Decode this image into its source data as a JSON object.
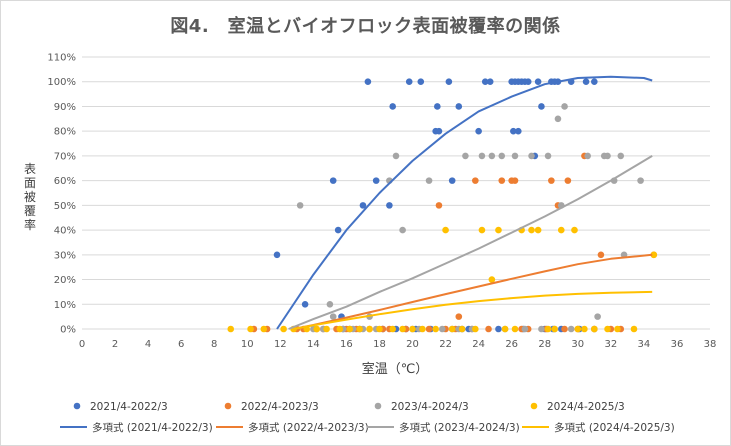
{
  "colors": {
    "s1": "#4472C4",
    "s2": "#ED7D31",
    "s3": "#A5A5A5",
    "s4": "#FFC000"
  },
  "chart_data": {
    "type": "scatter",
    "title": "図4.　室温とバイオフロック表面被覆率の関係",
    "xlabel": "室温（℃）",
    "ylabel": "表面被覆率",
    "xlim": [
      0,
      38
    ],
    "ylim": [
      0,
      110
    ],
    "x_ticks": [
      "0",
      "2",
      "4",
      "6",
      "8",
      "10",
      "12",
      "14",
      "16",
      "18",
      "20",
      "22",
      "24",
      "26",
      "28",
      "30",
      "32",
      "34",
      "36",
      "38"
    ],
    "y_ticks": [
      "0%",
      "10%",
      "20%",
      "30%",
      "40%",
      "50%",
      "60%",
      "70%",
      "80%",
      "90%",
      "100%",
      "110%"
    ],
    "grid": true,
    "legend_position": "bottom",
    "series": [
      {
        "name": "2021/4-2022/3",
        "color": "#4472C4",
        "points": [
          [
            11.8,
            30
          ],
          [
            13.5,
            10
          ],
          [
            15.2,
            60
          ],
          [
            15.5,
            40
          ],
          [
            15.7,
            5
          ],
          [
            15.8,
            0
          ],
          [
            16.2,
            0
          ],
          [
            16.8,
            0
          ],
          [
            17.0,
            50
          ],
          [
            17.3,
            100
          ],
          [
            17.8,
            60
          ],
          [
            18.2,
            0
          ],
          [
            18.6,
            50
          ],
          [
            18.8,
            90
          ],
          [
            19.0,
            0
          ],
          [
            19.6,
            0
          ],
          [
            19.8,
            100
          ],
          [
            20.2,
            0
          ],
          [
            20.5,
            100
          ],
          [
            21.1,
            0
          ],
          [
            21.4,
            80
          ],
          [
            21.5,
            90
          ],
          [
            21.6,
            80
          ],
          [
            22.2,
            100
          ],
          [
            22.4,
            60
          ],
          [
            22.8,
            90
          ],
          [
            23.0,
            0
          ],
          [
            23.4,
            0
          ],
          [
            24.0,
            80
          ],
          [
            24.4,
            100
          ],
          [
            24.7,
            100
          ],
          [
            25.2,
            0
          ],
          [
            26.0,
            100
          ],
          [
            26.2,
            100
          ],
          [
            26.4,
            100
          ],
          [
            26.6,
            100
          ],
          [
            26.8,
            100
          ],
          [
            27.0,
            100
          ],
          [
            26.1,
            80
          ],
          [
            26.4,
            80
          ],
          [
            26.7,
            0
          ],
          [
            27.4,
            70
          ],
          [
            27.6,
            100
          ],
          [
            27.8,
            90
          ],
          [
            28.4,
            100
          ],
          [
            28.6,
            100
          ],
          [
            28.8,
            100
          ],
          [
            28.0,
            0
          ],
          [
            28.5,
            0
          ],
          [
            29.0,
            0
          ],
          [
            29.6,
            100
          ],
          [
            30.1,
            0
          ],
          [
            30.5,
            100
          ],
          [
            31.0,
            100
          ]
        ]
      },
      {
        "name": "2022/4-2023/3",
        "color": "#ED7D31",
        "points": [
          [
            10.4,
            0
          ],
          [
            11.2,
            0
          ],
          [
            13.0,
            0
          ],
          [
            13.4,
            0
          ],
          [
            14.2,
            0
          ],
          [
            14.6,
            0
          ],
          [
            15.4,
            0
          ],
          [
            16.0,
            0
          ],
          [
            16.6,
            0
          ],
          [
            17.4,
            0
          ],
          [
            18.2,
            0
          ],
          [
            18.6,
            0
          ],
          [
            19.6,
            0
          ],
          [
            21.0,
            0
          ],
          [
            21.6,
            50
          ],
          [
            22.0,
            0
          ],
          [
            22.6,
            0
          ],
          [
            22.8,
            5
          ],
          [
            23.6,
            0
          ],
          [
            23.8,
            60
          ],
          [
            24.6,
            0
          ],
          [
            25.4,
            60
          ],
          [
            26.0,
            60
          ],
          [
            26.2,
            60
          ],
          [
            26.6,
            0
          ],
          [
            27.0,
            0
          ],
          [
            28.1,
            0
          ],
          [
            28.4,
            60
          ],
          [
            28.8,
            50
          ],
          [
            29.2,
            0
          ],
          [
            29.4,
            60
          ],
          [
            30.0,
            0
          ],
          [
            30.4,
            70
          ],
          [
            31.0,
            0
          ],
          [
            31.4,
            30
          ],
          [
            32.0,
            0
          ],
          [
            32.6,
            0
          ],
          [
            34.6,
            30
          ]
        ]
      },
      {
        "name": "2023/4-2024/3",
        "color": "#A5A5A5",
        "points": [
          [
            13.2,
            50
          ],
          [
            14.0,
            0
          ],
          [
            14.6,
            0
          ],
          [
            15.0,
            10
          ],
          [
            15.2,
            5
          ],
          [
            15.8,
            0
          ],
          [
            16.4,
            0
          ],
          [
            17.0,
            0
          ],
          [
            17.4,
            5
          ],
          [
            17.8,
            0
          ],
          [
            18.6,
            60
          ],
          [
            19.0,
            70
          ],
          [
            19.4,
            40
          ],
          [
            20.0,
            0
          ],
          [
            20.4,
            0
          ],
          [
            21.0,
            60
          ],
          [
            21.8,
            0
          ],
          [
            22.4,
            0
          ],
          [
            22.8,
            0
          ],
          [
            23.2,
            70
          ],
          [
            23.6,
            0
          ],
          [
            24.2,
            70
          ],
          [
            24.8,
            70
          ],
          [
            25.4,
            70
          ],
          [
            25.6,
            0
          ],
          [
            26.2,
            70
          ],
          [
            26.8,
            0
          ],
          [
            27.2,
            70
          ],
          [
            27.8,
            0
          ],
          [
            28.2,
            70
          ],
          [
            28.6,
            0
          ],
          [
            28.8,
            85
          ],
          [
            29.0,
            50
          ],
          [
            29.2,
            90
          ],
          [
            29.6,
            0
          ],
          [
            30.6,
            70
          ],
          [
            31.0,
            0
          ],
          [
            31.6,
            70
          ],
          [
            31.8,
            70
          ],
          [
            32.2,
            60
          ],
          [
            32.6,
            70
          ],
          [
            32.8,
            30
          ],
          [
            31.2,
            5
          ],
          [
            33.8,
            60
          ]
        ]
      },
      {
        "name": "2024/4-2025/3",
        "color": "#FFC000",
        "points": [
          [
            9.0,
            0
          ],
          [
            10.2,
            0
          ],
          [
            11.0,
            0
          ],
          [
            12.2,
            0
          ],
          [
            12.8,
            0
          ],
          [
            13.6,
            0
          ],
          [
            14.2,
            0
          ],
          [
            14.8,
            0
          ],
          [
            15.6,
            0
          ],
          [
            16.2,
            0
          ],
          [
            16.8,
            0
          ],
          [
            17.4,
            0
          ],
          [
            18.0,
            0
          ],
          [
            18.8,
            0
          ],
          [
            19.4,
            0
          ],
          [
            20.0,
            0
          ],
          [
            20.6,
            0
          ],
          [
            21.4,
            0
          ],
          [
            22.0,
            40
          ],
          [
            22.4,
            0
          ],
          [
            23.0,
            0
          ],
          [
            23.8,
            0
          ],
          [
            24.2,
            40
          ],
          [
            24.8,
            20
          ],
          [
            25.2,
            40
          ],
          [
            25.6,
            0
          ],
          [
            26.2,
            0
          ],
          [
            26.6,
            40
          ],
          [
            27.2,
            40
          ],
          [
            27.6,
            40
          ],
          [
            28.2,
            0
          ],
          [
            28.6,
            0
          ],
          [
            29.0,
            40
          ],
          [
            29.8,
            40
          ],
          [
            30.0,
            0
          ],
          [
            30.4,
            0
          ],
          [
            31.0,
            0
          ],
          [
            31.8,
            0
          ],
          [
            32.4,
            0
          ],
          [
            33.4,
            0
          ],
          [
            34.6,
            30
          ]
        ]
      }
    ],
    "trendlines": [
      {
        "name": "多項式 (2021/4-2022/3)",
        "color": "#4472C4",
        "type": "poly2",
        "x_range": [
          11.8,
          34.5
        ],
        "points": [
          [
            11.8,
            0
          ],
          [
            14,
            22
          ],
          [
            16,
            40
          ],
          [
            18,
            55
          ],
          [
            20,
            68
          ],
          [
            22,
            79
          ],
          [
            24,
            88
          ],
          [
            26,
            94
          ],
          [
            28,
            99
          ],
          [
            30,
            101.5
          ],
          [
            32,
            102
          ],
          [
            34,
            101.5
          ],
          [
            34.5,
            100.5
          ]
        ]
      },
      {
        "name": "多項式 (2022/4-2023/3)",
        "color": "#ED7D31",
        "type": "poly2",
        "x_range": [
          12.8,
          34.5
        ],
        "points": [
          [
            12.8,
            0
          ],
          [
            14,
            1.6
          ],
          [
            16,
            4.6
          ],
          [
            18,
            7.7
          ],
          [
            20,
            10.9
          ],
          [
            22,
            14.1
          ],
          [
            24,
            17.2
          ],
          [
            26,
            20.3
          ],
          [
            28,
            23.3
          ],
          [
            30,
            26.2
          ],
          [
            32,
            28.4
          ],
          [
            34.5,
            30
          ]
        ]
      },
      {
        "name": "多項式 (2023/4-2024/3)",
        "color": "#A5A5A5",
        "type": "poly2",
        "x_range": [
          12.5,
          34.5
        ],
        "points": [
          [
            12.5,
            0
          ],
          [
            14,
            4
          ],
          [
            16,
            9
          ],
          [
            18,
            15
          ],
          [
            20,
            20.5
          ],
          [
            22,
            26.5
          ],
          [
            24,
            32.5
          ],
          [
            26,
            39
          ],
          [
            28,
            45.5
          ],
          [
            30,
            52.5
          ],
          [
            32,
            60
          ],
          [
            34.5,
            70
          ]
        ]
      },
      {
        "name": "多項式 (2024/4-2025/3)",
        "color": "#FFC000",
        "type": "poly2",
        "x_range": [
          12.8,
          34.5
        ],
        "points": [
          [
            12.8,
            0
          ],
          [
            14,
            1.5
          ],
          [
            16,
            3.8
          ],
          [
            18,
            6
          ],
          [
            20,
            8
          ],
          [
            22,
            9.8
          ],
          [
            24,
            11.3
          ],
          [
            26,
            12.5
          ],
          [
            28,
            13.5
          ],
          [
            30,
            14.2
          ],
          [
            32,
            14.7
          ],
          [
            34.5,
            15
          ]
        ]
      }
    ],
    "legend": [
      {
        "label": "2021/4-2022/3",
        "kind": "marker",
        "color": "#4472C4"
      },
      {
        "label": "2022/4-2023/3",
        "kind": "marker",
        "color": "#ED7D31"
      },
      {
        "label": "2023/4-2024/3",
        "kind": "marker",
        "color": "#A5A5A5"
      },
      {
        "label": "2024/4-2025/3",
        "kind": "marker",
        "color": "#FFC000"
      },
      {
        "label": "多項式 (2021/4-2022/3)",
        "kind": "line",
        "color": "#4472C4"
      },
      {
        "label": "多項式 (2022/4-2023/3)",
        "kind": "line",
        "color": "#ED7D31"
      },
      {
        "label": "多項式 (2023/4-2024/3)",
        "kind": "line",
        "color": "#A5A5A5"
      },
      {
        "label": "多項式 (2024/4-2025/3)",
        "kind": "line",
        "color": "#FFC000"
      }
    ]
  }
}
